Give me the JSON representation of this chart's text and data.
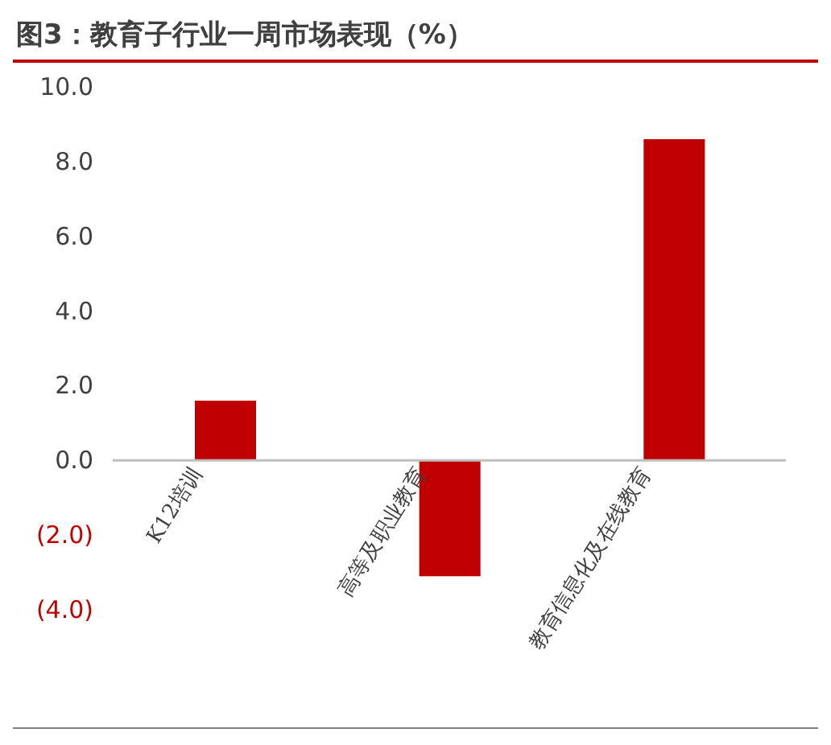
{
  "chart_data": {
    "type": "bar",
    "title": "图3：教育子行业一周市场表现（%）",
    "categories": [
      "K12培训",
      "高等及职业教育",
      "教育信息化及在线教育"
    ],
    "values": [
      1.6,
      -3.1,
      8.6
    ],
    "color": "#c00000",
    "ylim": [
      -4,
      10
    ],
    "yticks": [
      {
        "value": -4,
        "label": "(4.0)"
      },
      {
        "value": -2,
        "label": "(2.0)"
      },
      {
        "value": 0,
        "label": "0.0"
      },
      {
        "value": 2,
        "label": "2.0"
      },
      {
        "value": 4,
        "label": "4.0"
      },
      {
        "value": 6,
        "label": "6.0"
      },
      {
        "value": 8,
        "label": "8.0"
      },
      {
        "value": 10,
        "label": "10.0"
      }
    ],
    "grid": false,
    "legend": false
  }
}
